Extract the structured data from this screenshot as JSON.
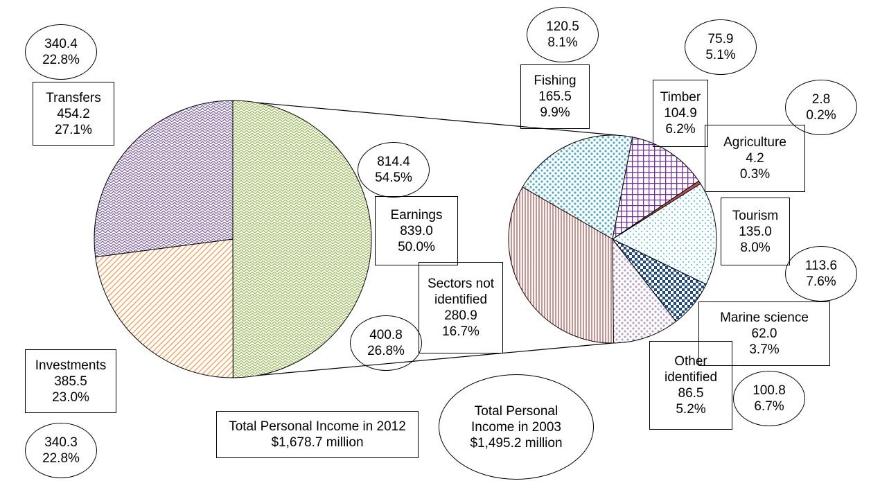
{
  "chart_data": {
    "type": "pie-of-pie",
    "pies": [
      {
        "categories": [
          "Earnings",
          "Investments",
          "Transfers"
        ],
        "values": [
          839.0,
          385.5,
          454.2
        ],
        "value_labels": [
          "839.0",
          "385.5",
          "454.2"
        ],
        "percents": [
          50.0,
          23.0,
          27.1
        ],
        "percent_labels": [
          "50.0%",
          "23.0%",
          "27.1%"
        ],
        "colors": [
          "#9bbb59",
          "#f79646",
          "#8064a2"
        ],
        "patterns": [
          "weave",
          "diagonal",
          "weave"
        ],
        "values_2003": [
          814.4,
          340.3,
          340.4
        ],
        "percents_2003": [
          54.5,
          22.8,
          22.8
        ],
        "percent_labels_2003": [
          "54.5%",
          "22.8%",
          "22.8%"
        ]
      },
      {
        "categories": [
          "Fishing",
          "Timber",
          "Agriculture",
          "Tourism",
          "Marine science",
          "Other identified",
          "Sectors not identified"
        ],
        "values": [
          165.5,
          104.9,
          4.2,
          135.0,
          62.0,
          86.5,
          280.9
        ],
        "value_labels": [
          "165.5",
          "104.9",
          "4.2",
          "135.0",
          "62.0",
          "86.5",
          "280.9"
        ],
        "percents": [
          9.9,
          6.2,
          0.3,
          8.0,
          3.7,
          5.2,
          16.7
        ],
        "percent_labels": [
          "9.9%",
          "6.2%",
          "0.3%",
          "8.0%",
          "3.7%",
          "5.2%",
          "16.7%"
        ],
        "colors": [
          "#4bacc6",
          "#7030a0",
          "#c0504d",
          "#00b0f0",
          "#1f497d",
          "#b3a2c7",
          "#c0504d"
        ],
        "patterns": [
          "dots",
          "grid",
          "solid",
          "dashes",
          "checker",
          "dots",
          "vertical"
        ],
        "values_2003": [
          120.5,
          75.9,
          2.8,
          113.6,
          100.8,
          null,
          400.8
        ],
        "percents_2003": [
          8.1,
          5.1,
          0.2,
          7.6,
          6.7,
          null,
          26.8
        ],
        "percent_labels_2003": [
          "8.1%",
          "5.1%",
          "0.2%",
          "7.6%",
          "6.7%",
          null,
          "26.8%"
        ]
      }
    ],
    "totals": [
      "Total Personal Income in 2012 $1,678.7 million",
      "Total Personal Income in 2003 $1,495.2 million"
    ]
  }
}
